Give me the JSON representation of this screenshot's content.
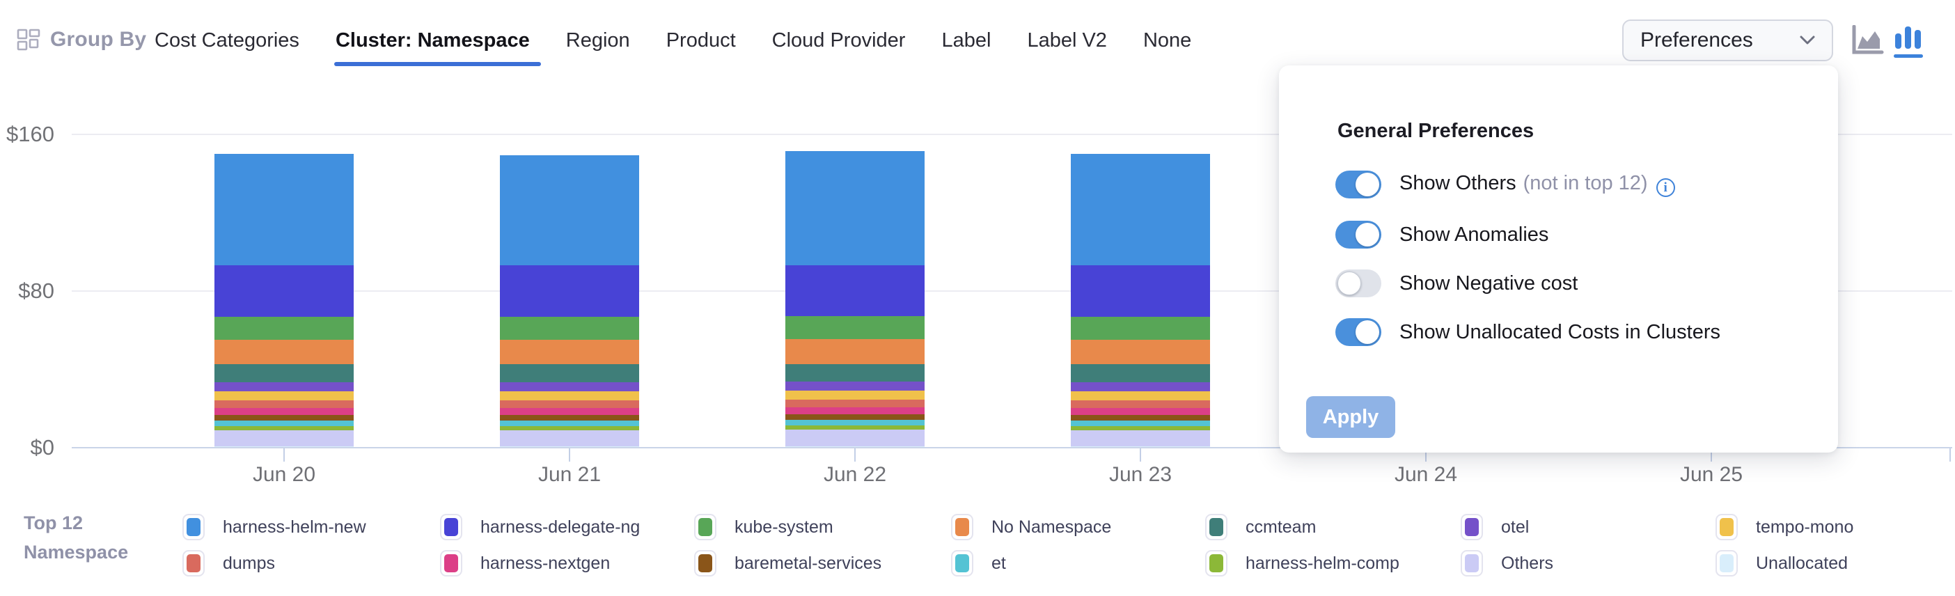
{
  "colors": {
    "accent_blue": "#3B6FD6",
    "icon_blue": "#3C82DB",
    "icon_gray": "#9a9bab",
    "toggle_on": "#4A90DC",
    "apply_disabled": "#8FB3E6",
    "info_icon": "#3F83D9"
  },
  "header": {
    "group_by_label": "Group By",
    "tabs": [
      {
        "label": "Cost Categories",
        "active": false
      },
      {
        "label": "Cluster: Namespace",
        "active": true
      },
      {
        "label": "Region",
        "active": false
      },
      {
        "label": "Product",
        "active": false
      },
      {
        "label": "Cloud Provider",
        "active": false
      },
      {
        "label": "Label",
        "active": false
      },
      {
        "label": "Label V2",
        "active": false
      },
      {
        "label": "None",
        "active": false
      }
    ],
    "preferences_button": "Preferences",
    "chart_type_icons": [
      {
        "name": "area-chart-icon",
        "active": false
      },
      {
        "name": "bar-chart-icon",
        "active": true
      }
    ]
  },
  "preferences_panel": {
    "title": "General Preferences",
    "toggles": [
      {
        "label": "Show Others",
        "suffix": "(not in top 12)",
        "info": true,
        "on": true
      },
      {
        "label": "Show Anomalies",
        "suffix": "",
        "info": false,
        "on": true
      },
      {
        "label": "Show Negative cost",
        "suffix": "",
        "info": false,
        "on": false
      },
      {
        "label": "Show Unallocated Costs in Clusters",
        "suffix": "",
        "info": false,
        "on": true
      }
    ],
    "apply_label": "Apply",
    "apply_enabled": false
  },
  "legend": {
    "title_lines": [
      "Top 12",
      "Namespace"
    ],
    "display_order_column_major": [
      "harness-helm-new",
      "dumps",
      "harness-delegate-ng",
      "harness-nextgen",
      "kube-system",
      "baremetal-services",
      "No Namespace",
      "et",
      "ccmteam",
      "harness-helm-comp",
      "otel",
      "Others",
      "tempo-mono",
      "Unallocated"
    ]
  },
  "chart_data": {
    "type": "bar",
    "stacked": true,
    "title": "",
    "xlabel": "",
    "ylabel": "",
    "x_labels": [
      "Jun 20",
      "Jun 21",
      "Jun 22",
      "Jun 23",
      "Jun 24",
      "Jun 25"
    ],
    "bars_rendered_for": [
      "Jun 20",
      "Jun 21",
      "Jun 22",
      "Jun 23"
    ],
    "y_ticks": [
      {
        "label": "$0",
        "value": 0
      },
      {
        "label": "$80",
        "value": 80
      },
      {
        "label": "$160",
        "value": 160
      }
    ],
    "ylim": [
      0,
      160
    ],
    "grid": "horizontal",
    "legend_position": "bottom",
    "series_stack_order_bottom_to_top": [
      {
        "name": "Unallocated",
        "color": "#D9EEFB",
        "values": [
          0.7,
          0.7,
          0.7,
          0.7
        ]
      },
      {
        "name": "Others",
        "color": "#CBCBF5",
        "values": [
          8.3,
          8.3,
          8.6,
          8.3
        ]
      },
      {
        "name": "harness-helm-comp",
        "color": "#8CB838",
        "values": [
          2.1,
          2.1,
          2.1,
          2.1
        ]
      },
      {
        "name": "et",
        "color": "#54C3D4",
        "values": [
          2.8,
          2.8,
          2.8,
          2.8
        ]
      },
      {
        "name": "baremetal-services",
        "color": "#8A5519",
        "values": [
          2.8,
          2.8,
          2.8,
          2.8
        ]
      },
      {
        "name": "harness-nextgen",
        "color": "#DC3F87",
        "values": [
          3.5,
          3.5,
          3.5,
          3.5
        ]
      },
      {
        "name": "dumps",
        "color": "#D96A5E",
        "values": [
          4.0,
          4.0,
          4.0,
          4.0
        ]
      },
      {
        "name": "tempo-mono",
        "color": "#F0C14B",
        "values": [
          4.5,
          4.5,
          4.5,
          4.5
        ]
      },
      {
        "name": "otel",
        "color": "#7551C9",
        "values": [
          4.8,
          4.8,
          4.8,
          4.8
        ]
      },
      {
        "name": "ccmteam",
        "color": "#3F7E79",
        "values": [
          9.0,
          9.0,
          9.0,
          9.0
        ]
      },
      {
        "name": "No Namespace",
        "color": "#E8894B",
        "values": [
          12.5,
          12.5,
          12.5,
          12.5
        ]
      },
      {
        "name": "kube-system",
        "color": "#58A657",
        "values": [
          12.0,
          12.0,
          12.0,
          12.0
        ]
      },
      {
        "name": "harness-delegate-ng",
        "color": "#4843D6",
        "values": [
          26.0,
          26.0,
          26.0,
          26.0
        ]
      },
      {
        "name": "harness-helm-new",
        "color": "#4190DF",
        "values": [
          57.0,
          56.5,
          58.0,
          57.0
        ]
      }
    ]
  }
}
